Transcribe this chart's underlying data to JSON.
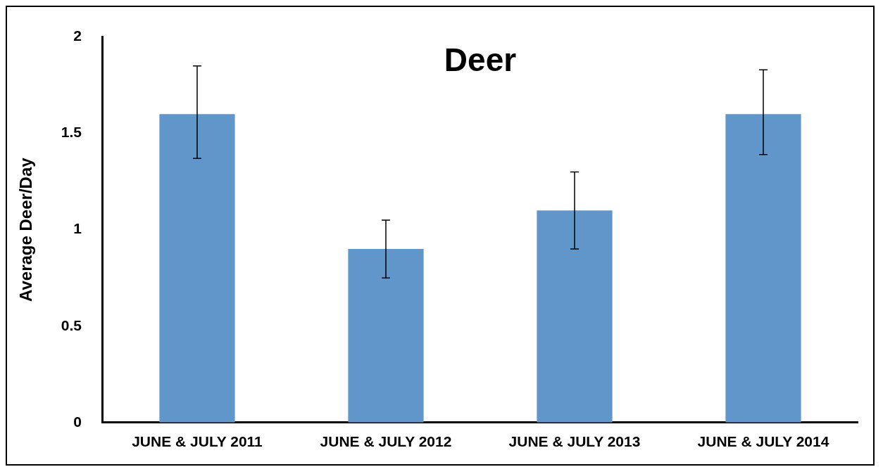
{
  "chart_data": {
    "type": "bar",
    "title": "Deer",
    "ylabel": "Average Deer/Day",
    "categories": [
      "JUNE & JULY 2011",
      "JUNE & JULY 2012",
      "JUNE & JULY 2013",
      "JUNE & JULY 2014"
    ],
    "values": [
      1.6,
      0.9,
      1.1,
      1.6
    ],
    "errors": [
      [
        1.37,
        1.85
      ],
      [
        0.75,
        1.05
      ],
      [
        0.9,
        1.3
      ],
      [
        1.39,
        1.83
      ]
    ],
    "color": "#6096c9",
    "ylim": [
      0,
      2
    ],
    "yticks": [
      0,
      0.5,
      1,
      1.5,
      2
    ],
    "grid": false,
    "legend": false
  }
}
